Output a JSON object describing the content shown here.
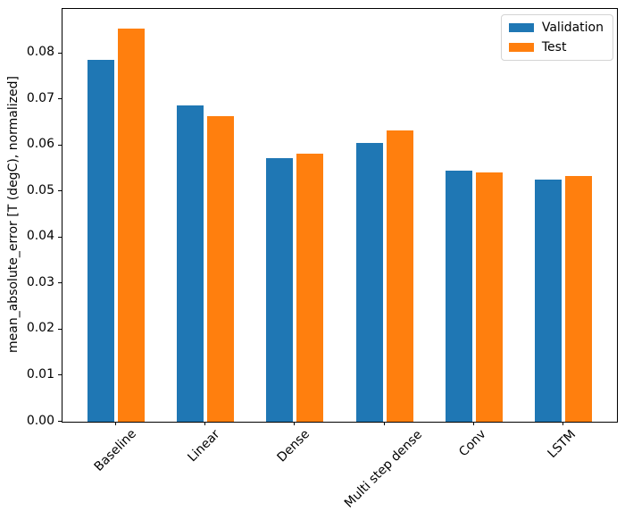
{
  "figure": {
    "background": "#ffffff"
  },
  "chart_data": {
    "type": "bar",
    "title": "",
    "xlabel": "",
    "ylabel": "mean_absolute_error [T (degC), normalized]",
    "categories": [
      "Baseline",
      "Linear",
      "Dense",
      "Multi step dense",
      "Conv",
      "LSTM"
    ],
    "series": [
      {
        "name": "Validation",
        "color": "#1f77b4",
        "values": [
          0.0786,
          0.0687,
          0.0572,
          0.0605,
          0.0545,
          0.0525
        ]
      },
      {
        "name": "Test",
        "color": "#ff7f0e",
        "values": [
          0.0853,
          0.0664,
          0.0582,
          0.0633,
          0.0542,
          0.0533
        ]
      }
    ],
    "ylim": [
      0,
      0.0896
    ],
    "yticks": [
      0.0,
      0.01,
      0.02,
      0.03,
      0.04,
      0.05,
      0.06,
      0.07,
      0.08
    ],
    "ytick_decimals": 2,
    "xlim": [
      -0.6,
      5.6
    ],
    "bar_width": 0.3,
    "bar_offsets": [
      -0.17,
      0.17
    ],
    "x_label_rotation_deg": 45,
    "grid": false,
    "legend_position": "upper right",
    "axis_color": "#000000"
  }
}
